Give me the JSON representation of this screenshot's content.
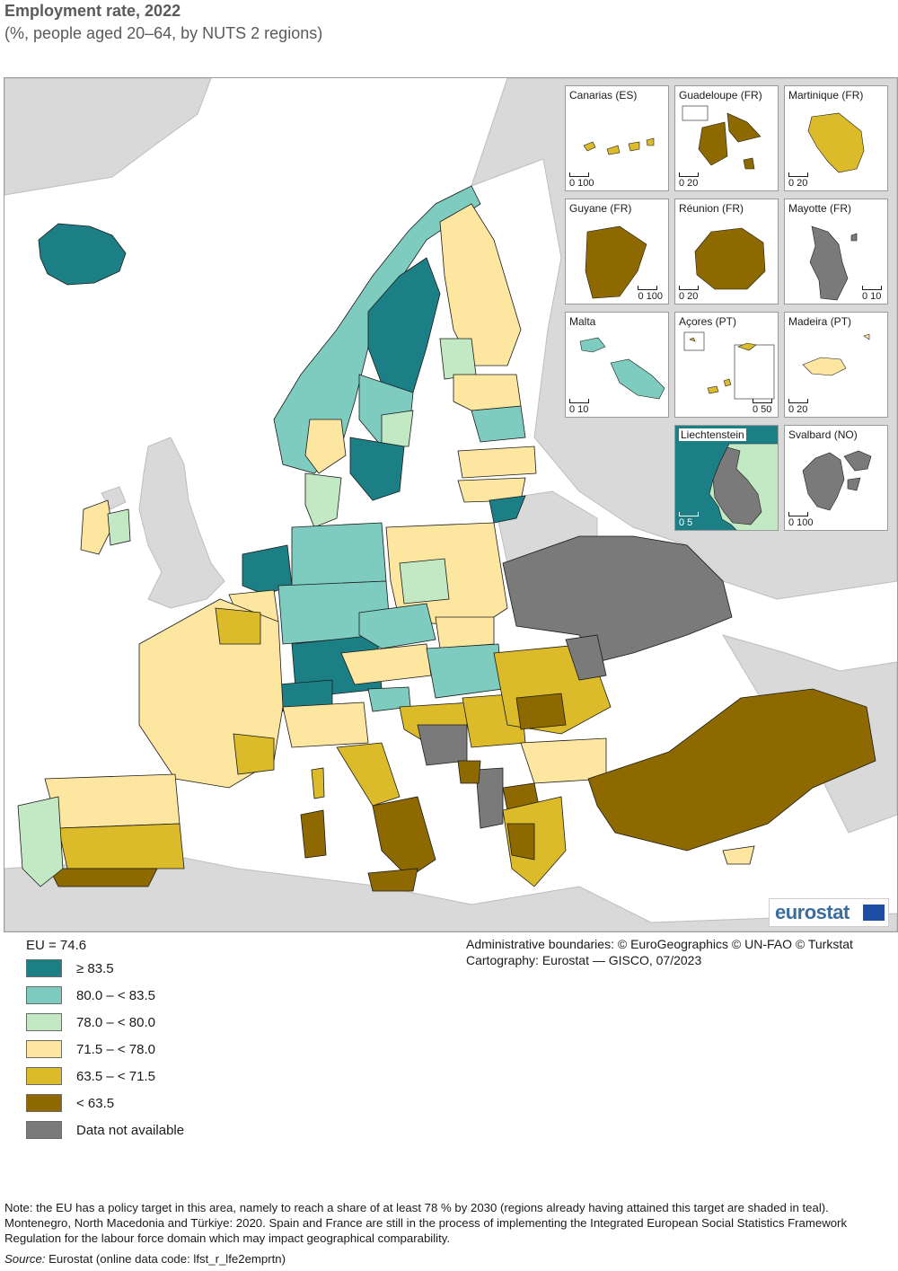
{
  "title": "Employment rate, 2022",
  "subtitle": "(%, people aged 20–64, by NUTS 2 regions)",
  "colors": {
    "sea": "#ffffff",
    "non_covered": "#d9d9d9",
    "border": "#1a1a1a",
    "classes": [
      "#1d7f86",
      "#7ecbbf",
      "#c2e8c4",
      "#fde6a0",
      "#dbbb2a",
      "#8d6900",
      "#7a7a7a"
    ]
  },
  "legend": {
    "eu_label": "EU = 74.6",
    "items": [
      {
        "label": "≥ 83.5",
        "color": "#1d7f86"
      },
      {
        "label": "80.0 – < 83.5",
        "color": "#7ecbbf"
      },
      {
        "label": "78.0 – < 80.0",
        "color": "#c2e8c4"
      },
      {
        "label": "71.5 – < 78.0",
        "color": "#fde6a0"
      },
      {
        "label": "63.5 – < 71.5",
        "color": "#dbbb2a"
      },
      {
        "label": "< 63.5",
        "color": "#8d6900"
      },
      {
        "label": "Data not available",
        "color": "#7a7a7a"
      }
    ]
  },
  "insets": [
    {
      "name": "Canarias (ES)",
      "scale": "0  100"
    },
    {
      "name": "Guadeloupe (FR)",
      "scale": "0  20"
    },
    {
      "name": "Martinique (FR)",
      "scale": "0  20"
    },
    {
      "name": "Guyane (FR)",
      "scale": "0  100"
    },
    {
      "name": "Réunion (FR)",
      "scale": "0  20"
    },
    {
      "name": "Mayotte (FR)",
      "scale": "0  10"
    },
    {
      "name": "Malta",
      "scale": "0  10"
    },
    {
      "name": "Açores (PT)",
      "scale": "0  50"
    },
    {
      "name": "Madeira (PT)",
      "scale": "0  20"
    },
    {
      "name": "Liechtenstein",
      "scale": "0  5"
    },
    {
      "name": "Svalbard (NO)",
      "scale": "0  100"
    }
  ],
  "logo": "eurostat",
  "credits": {
    "line1": "Administrative boundaries: © EuroGeographics © UN-FAO © Turkstat",
    "line2": "Cartography: Eurostat — GISCO, 07/2023"
  },
  "note": "Note: the EU has a policy target in this area, namely to reach a share of at least 78 % by 2030 (regions already having attained this target are shaded in teal). Montenegro, North Macedonia and Türkiye: 2020. Spain and France are still in the process of implementing the Integrated European Social Statistics Framework Regulation for the labour force domain which may impact geographical comparability.",
  "source": {
    "label": "Source:",
    "text": " Eurostat (online data code: lfst_r_lfe2emprtn)"
  }
}
